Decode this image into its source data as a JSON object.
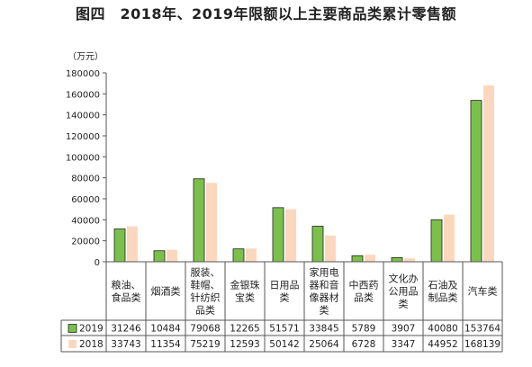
{
  "title": "图四　2018年、2019年限额以上主要商品类累计零售额",
  "chart_data": {
    "type": "bar",
    "title": "图四　2018年、2019年限额以上主要商品类累计零售额",
    "unit_label": "（万元）",
    "ylim": [
      0,
      180000
    ],
    "yticks": [
      0,
      20000,
      40000,
      60000,
      80000,
      100000,
      120000,
      140000,
      160000,
      180000
    ],
    "grid": false,
    "legend": "table-left",
    "categories": [
      [
        "粮油、",
        "食品类"
      ],
      [
        "烟酒类"
      ],
      [
        "服装、",
        "鞋帽、",
        "针纺织",
        "品类"
      ],
      [
        "金银珠",
        "宝类"
      ],
      [
        "日用品",
        "类"
      ],
      [
        "家用电",
        "器和音",
        "像器材",
        "类"
      ],
      [
        "中西药",
        "品类"
      ],
      [
        "文化办",
        "公用品",
        "类"
      ],
      [
        "石油及",
        "制品类"
      ],
      [
        "汽车类"
      ]
    ],
    "series": [
      {
        "name": "2019",
        "color": "#7cc04c",
        "stroke": "#222222",
        "values": [
          31246,
          10484,
          79068,
          12265,
          51571,
          33845,
          5789,
          3907,
          40080,
          153764
        ]
      },
      {
        "name": "2018",
        "color": "#fbd8bd",
        "stroke": "none",
        "values": [
          33743,
          11354,
          75219,
          12593,
          50142,
          25064,
          6728,
          3347,
          44952,
          168139
        ]
      }
    ]
  }
}
